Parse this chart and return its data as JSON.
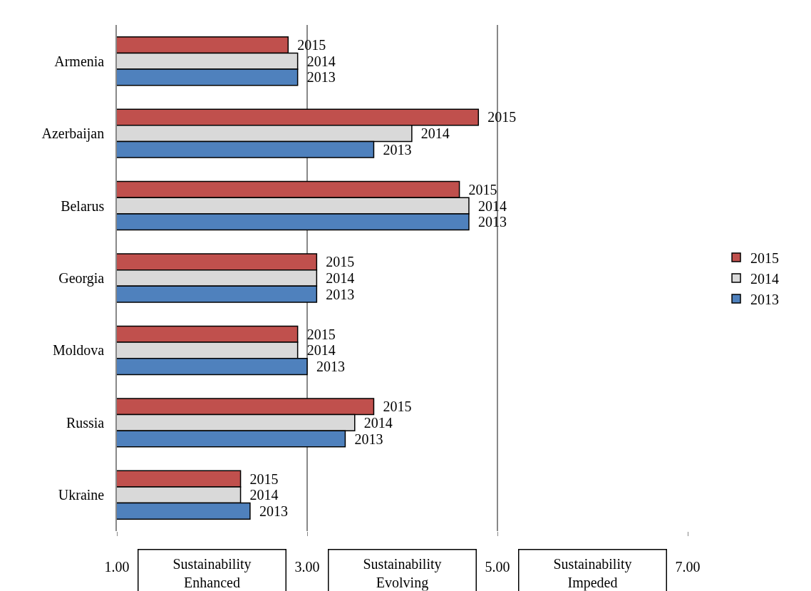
{
  "chart_data": {
    "type": "bar",
    "orientation": "horizontal",
    "categories": [
      "Armenia",
      "Azerbaijan",
      "Belarus",
      "Georgia",
      "Moldova",
      "Russia",
      "Ukraine"
    ],
    "series": [
      {
        "name": "2015",
        "color": "#c0504d",
        "values": [
          2.8,
          4.8,
          4.6,
          3.1,
          2.9,
          3.7,
          2.3
        ]
      },
      {
        "name": "2014",
        "color": "#d9d9d9",
        "values": [
          2.9,
          4.1,
          4.7,
          3.1,
          2.9,
          3.5,
          2.3
        ]
      },
      {
        "name": "2013",
        "color": "#4f81bd",
        "values": [
          2.9,
          3.7,
          4.7,
          3.1,
          3.0,
          3.4,
          2.4
        ]
      }
    ],
    "xlim": [
      1,
      7
    ],
    "xticks": [
      {
        "value": 1,
        "label": "1.00"
      },
      {
        "value": 3,
        "label": "3.00"
      },
      {
        "value": 5,
        "label": "5.00"
      },
      {
        "value": 7,
        "label": "7.00"
      }
    ],
    "grid": "x",
    "legend": "right",
    "annotations": [
      "Sustainability Enhanced",
      "Sustainability Evolving",
      "Sustainability Impeded"
    ]
  }
}
